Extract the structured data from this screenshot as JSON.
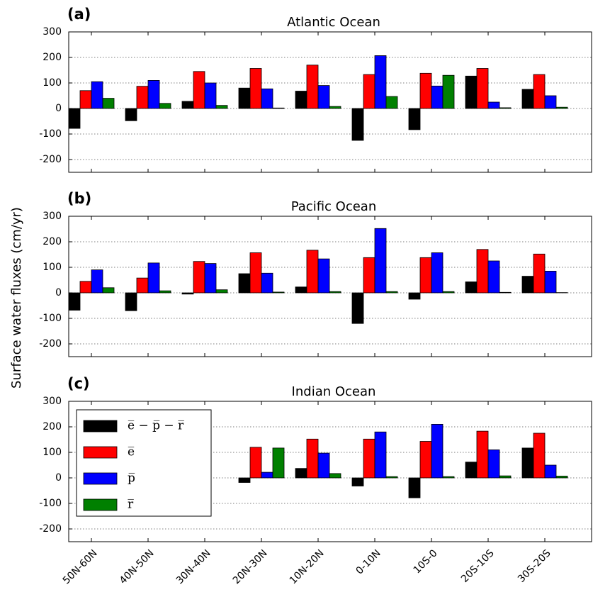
{
  "ylabel": "Surface water fluxes (cm/yr)",
  "chart_data": [
    {
      "type": "bar",
      "panel_label": "(a)",
      "title": "Atlantic Ocean",
      "ylim": [
        -250,
        300
      ],
      "yticks": [
        -200,
        -100,
        0,
        100,
        200,
        300
      ],
      "grid": true,
      "series": [
        {
          "color": "#000000",
          "values": [
            -78,
            -48,
            28,
            80,
            68,
            -125,
            -83,
            127,
            75
          ]
        },
        {
          "color": "#ff0000",
          "values": [
            70,
            87,
            145,
            157,
            170,
            133,
            138,
            157,
            133
          ]
        },
        {
          "color": "#0000ff",
          "values": [
            105,
            110,
            100,
            77,
            90,
            207,
            88,
            25,
            50
          ]
        },
        {
          "color": "#008000",
          "values": [
            40,
            20,
            12,
            2,
            8,
            47,
            130,
            3,
            5
          ]
        }
      ]
    },
    {
      "type": "bar",
      "panel_label": "(b)",
      "title": "Pacific Ocean",
      "ylim": [
        -250,
        300
      ],
      "yticks": [
        -200,
        -100,
        0,
        100,
        200,
        300
      ],
      "grid": true,
      "series": [
        {
          "color": "#000000",
          "values": [
            -68,
            -70,
            -5,
            75,
            23,
            -120,
            -25,
            43,
            65
          ]
        },
        {
          "color": "#ff0000",
          "values": [
            45,
            58,
            123,
            157,
            167,
            138,
            138,
            170,
            152
          ]
        },
        {
          "color": "#0000ff",
          "values": [
            90,
            117,
            115,
            77,
            133,
            252,
            157,
            125,
            85
          ]
        },
        {
          "color": "#008000",
          "values": [
            20,
            8,
            12,
            3,
            5,
            5,
            5,
            2,
            1
          ]
        }
      ]
    },
    {
      "type": "bar",
      "panel_label": "(c)",
      "title": "Indian Ocean",
      "categories": [
        "50N-60N",
        "40N-50N",
        "30N-40N",
        "20N-30N",
        "10N-20N",
        "0-10N",
        "10S-0",
        "20S-10S",
        "30S-20S"
      ],
      "ylim": [
        -250,
        300
      ],
      "yticks": [
        -200,
        -100,
        0,
        100,
        200,
        300
      ],
      "grid": true,
      "legend": "upper left",
      "series": [
        {
          "name": "e̅ − p̅ − r̅",
          "color": "#000000",
          "values": [
            null,
            null,
            null,
            -18,
            37,
            -32,
            -78,
            62,
            117
          ]
        },
        {
          "name": "e̅",
          "color": "#ff0000",
          "values": [
            null,
            null,
            null,
            120,
            152,
            152,
            143,
            183,
            175
          ]
        },
        {
          "name": "p̅",
          "color": "#0000ff",
          "values": [
            null,
            null,
            null,
            22,
            97,
            180,
            210,
            110,
            50
          ]
        },
        {
          "name": "r̅",
          "color": "#008000",
          "values": [
            null,
            null,
            null,
            117,
            17,
            5,
            5,
            8,
            7
          ]
        }
      ]
    }
  ]
}
